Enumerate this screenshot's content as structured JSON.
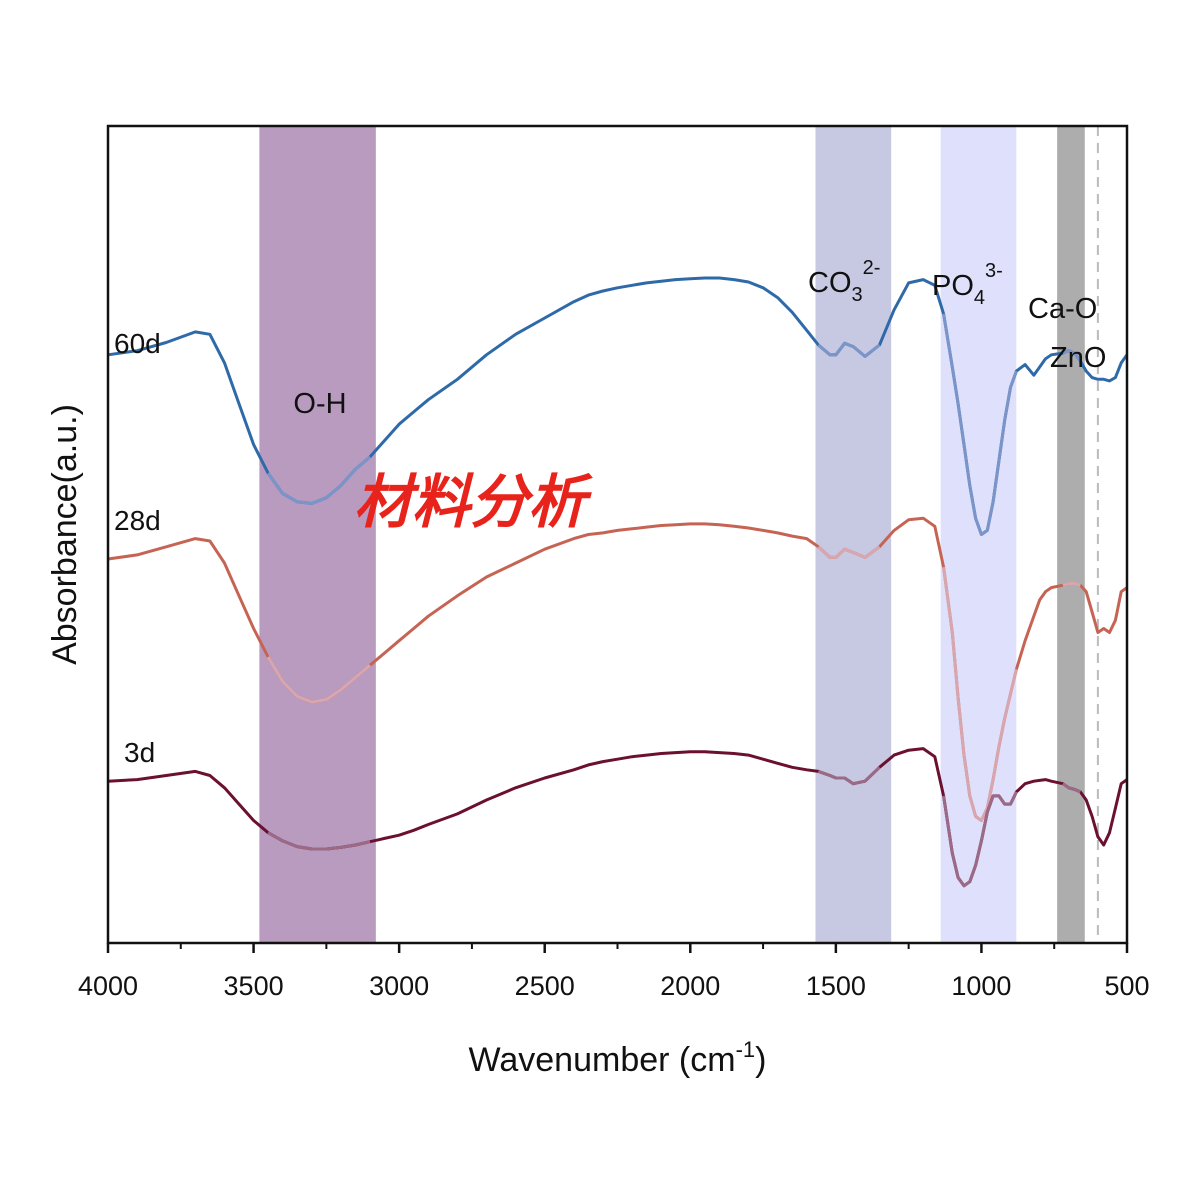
{
  "chart_data": {
    "type": "line",
    "title": "",
    "xlabel": "Wavenumber (cm",
    "xlabel_sup": "-1",
    "xlabel_end": ")",
    "ylabel": "Absorbance(a.u.)",
    "xlim": [
      4000,
      500
    ],
    "x_reversed": true,
    "ylim": [
      0,
      10
    ],
    "y_ticks_shown": false,
    "grid": false,
    "x_ticks": [
      4000,
      3500,
      3000,
      2500,
      2000,
      1500,
      1000,
      500
    ],
    "x_tick_labels": [
      "4000",
      "3500",
      "3000",
      "2500",
      "2000",
      "1500",
      "1000",
      "500"
    ],
    "bands": [
      {
        "name": "O-H",
        "label": "O-H",
        "from": 3480,
        "to": 3080,
        "color": "#b99bbf"
      },
      {
        "name": "CO3",
        "label": "CO",
        "sub": "3",
        "sup": "2-",
        "from": 1570,
        "to": 1310,
        "color": "#c7c8e2"
      },
      {
        "name": "PO4",
        "label": "PO",
        "sub": "4",
        "sup": "3-",
        "from": 1140,
        "to": 880,
        "color": "#dfe0fb"
      },
      {
        "name": "Ca-O",
        "label": "Ca-O",
        "from": 740,
        "to": 645,
        "color": "#adadad"
      }
    ],
    "reference_line": {
      "label": "ZnO",
      "x": 600,
      "color": "#bbbbbb",
      "style": "dashed"
    },
    "series": [
      {
        "name": "60d",
        "color": "#2f6aa8",
        "band_color": "#7b95c8",
        "x": [
          4000,
          3900,
          3800,
          3700,
          3650,
          3600,
          3550,
          3500,
          3450,
          3400,
          3350,
          3300,
          3250,
          3200,
          3150,
          3100,
          3050,
          3000,
          2950,
          2900,
          2800,
          2700,
          2600,
          2500,
          2400,
          2350,
          2300,
          2250,
          2200,
          2150,
          2100,
          2050,
          2000,
          1950,
          1900,
          1850,
          1800,
          1750,
          1700,
          1650,
          1600,
          1560,
          1520,
          1500,
          1470,
          1440,
          1400,
          1350,
          1300,
          1250,
          1200,
          1160,
          1130,
          1100,
          1080,
          1060,
          1040,
          1020,
          1000,
          980,
          960,
          940,
          920,
          900,
          880,
          850,
          820,
          800,
          780,
          760,
          720,
          700,
          680,
          660,
          640,
          620,
          600,
          580,
          560,
          540,
          520,
          500
        ],
        "y": [
          7.2,
          7.25,
          7.35,
          7.48,
          7.45,
          7.1,
          6.6,
          6.1,
          5.75,
          5.5,
          5.4,
          5.38,
          5.45,
          5.6,
          5.8,
          5.95,
          6.15,
          6.35,
          6.5,
          6.65,
          6.9,
          7.2,
          7.45,
          7.65,
          7.85,
          7.93,
          7.98,
          8.02,
          8.05,
          8.08,
          8.1,
          8.12,
          8.13,
          8.14,
          8.14,
          8.12,
          8.09,
          8.02,
          7.9,
          7.72,
          7.5,
          7.32,
          7.2,
          7.2,
          7.34,
          7.3,
          7.18,
          7.32,
          7.75,
          8.08,
          8.12,
          8.05,
          7.7,
          7.05,
          6.6,
          6.1,
          5.6,
          5.2,
          5.0,
          5.05,
          5.4,
          5.9,
          6.4,
          6.8,
          7.0,
          7.08,
          6.95,
          7.05,
          7.15,
          7.2,
          7.22,
          7.25,
          7.22,
          7.12,
          7.0,
          6.92,
          6.9,
          6.9,
          6.88,
          6.92,
          7.1,
          7.2
        ]
      },
      {
        "name": "28d",
        "color": "#c66454",
        "band_color": "#d8a6ae",
        "x": [
          4000,
          3900,
          3800,
          3700,
          3650,
          3600,
          3550,
          3500,
          3450,
          3400,
          3350,
          3300,
          3250,
          3200,
          3150,
          3100,
          3050,
          3000,
          2950,
          2900,
          2800,
          2700,
          2600,
          2500,
          2400,
          2350,
          2300,
          2250,
          2200,
          2150,
          2100,
          2050,
          2000,
          1950,
          1900,
          1850,
          1800,
          1750,
          1700,
          1650,
          1600,
          1560,
          1520,
          1500,
          1470,
          1440,
          1400,
          1350,
          1300,
          1250,
          1200,
          1160,
          1130,
          1100,
          1080,
          1060,
          1040,
          1020,
          1000,
          980,
          960,
          940,
          920,
          900,
          880,
          850,
          820,
          800,
          780,
          760,
          720,
          700,
          680,
          660,
          640,
          620,
          600,
          580,
          560,
          540,
          520,
          500
        ],
        "y": [
          4.7,
          4.75,
          4.85,
          4.95,
          4.92,
          4.65,
          4.25,
          3.85,
          3.5,
          3.2,
          3.02,
          2.95,
          2.98,
          3.1,
          3.25,
          3.4,
          3.55,
          3.7,
          3.85,
          4.0,
          4.25,
          4.48,
          4.65,
          4.82,
          4.95,
          5.0,
          5.02,
          5.05,
          5.07,
          5.09,
          5.11,
          5.12,
          5.13,
          5.13,
          5.12,
          5.1,
          5.08,
          5.05,
          5.02,
          4.98,
          4.95,
          4.85,
          4.72,
          4.72,
          4.82,
          4.78,
          4.72,
          4.85,
          5.05,
          5.18,
          5.2,
          5.1,
          4.6,
          3.8,
          3.0,
          2.3,
          1.8,
          1.55,
          1.5,
          1.65,
          2.0,
          2.4,
          2.75,
          3.05,
          3.35,
          3.7,
          4.0,
          4.2,
          4.3,
          4.35,
          4.38,
          4.4,
          4.4,
          4.38,
          4.3,
          4.05,
          3.8,
          3.85,
          3.8,
          3.95,
          4.3,
          4.35
        ]
      },
      {
        "name": "3d",
        "color": "#6b1030",
        "band_color": "#9a6a86",
        "x": [
          4000,
          3900,
          3800,
          3700,
          3650,
          3600,
          3550,
          3500,
          3450,
          3400,
          3350,
          3300,
          3250,
          3200,
          3150,
          3100,
          3050,
          3000,
          2950,
          2900,
          2800,
          2700,
          2600,
          2500,
          2400,
          2350,
          2300,
          2250,
          2200,
          2150,
          2100,
          2050,
          2000,
          1950,
          1900,
          1850,
          1800,
          1750,
          1700,
          1650,
          1600,
          1560,
          1520,
          1500,
          1470,
          1440,
          1400,
          1350,
          1300,
          1250,
          1200,
          1160,
          1130,
          1100,
          1080,
          1060,
          1040,
          1020,
          1000,
          980,
          960,
          940,
          920,
          900,
          880,
          850,
          820,
          800,
          780,
          760,
          720,
          700,
          680,
          660,
          640,
          620,
          600,
          580,
          560,
          540,
          520,
          500
        ],
        "y": [
          1.98,
          2.0,
          2.05,
          2.1,
          2.05,
          1.9,
          1.7,
          1.5,
          1.35,
          1.25,
          1.18,
          1.15,
          1.15,
          1.17,
          1.2,
          1.24,
          1.28,
          1.32,
          1.38,
          1.45,
          1.58,
          1.75,
          1.9,
          2.02,
          2.12,
          2.18,
          2.22,
          2.25,
          2.28,
          2.3,
          2.32,
          2.33,
          2.34,
          2.34,
          2.33,
          2.32,
          2.3,
          2.25,
          2.2,
          2.15,
          2.12,
          2.1,
          2.05,
          2.02,
          2.02,
          1.95,
          1.98,
          2.15,
          2.3,
          2.36,
          2.38,
          2.28,
          1.8,
          1.1,
          0.8,
          0.7,
          0.75,
          0.95,
          1.25,
          1.6,
          1.8,
          1.8,
          1.7,
          1.7,
          1.85,
          1.95,
          1.98,
          1.99,
          2.0,
          1.98,
          1.95,
          1.9,
          1.88,
          1.85,
          1.75,
          1.55,
          1.3,
          1.2,
          1.35,
          1.65,
          1.95,
          2.0
        ]
      }
    ]
  },
  "watermark": "材料分析"
}
